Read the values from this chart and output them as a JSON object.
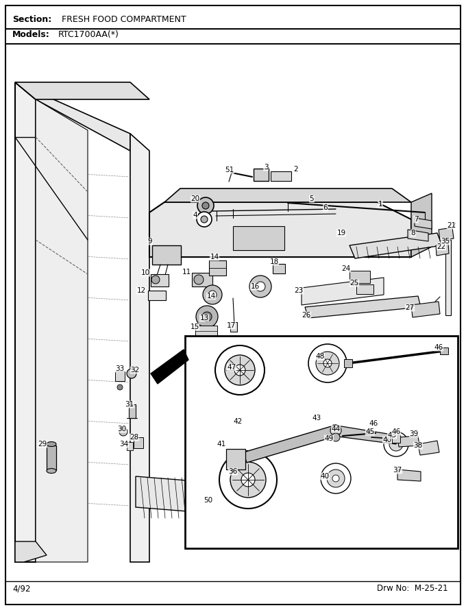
{
  "title_section": "Section:  FRESH FOOD COMPARTMENT",
  "title_models": "Models:  RTC1700AA(*)",
  "footer_left": "4/92",
  "footer_right": "Drw No:  M-25-21",
  "bg_color": "#ffffff",
  "border_color": "#000000",
  "text_color": "#000000",
  "fig_width": 6.8,
  "fig_height": 8.9,
  "dpi": 100
}
